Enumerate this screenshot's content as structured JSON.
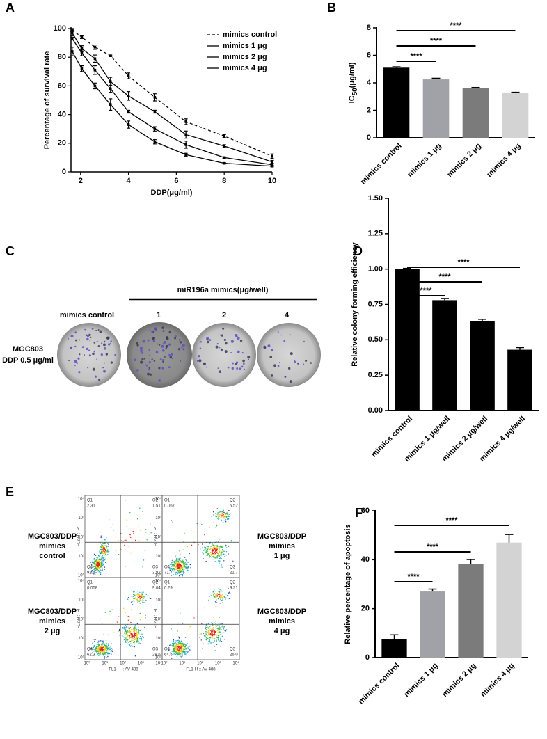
{
  "chart_data": [
    {
      "type": "line",
      "label": "A",
      "xlabel": "DDP(μg/ml)",
      "ylabel": "Percentage of survival rate",
      "x": [
        1.65,
        2.05,
        2.6,
        3.25,
        4,
        5.1,
        6.4,
        8,
        10
      ],
      "xlim": [
        1.6,
        10
      ],
      "xticks": [
        2,
        4,
        6,
        8,
        10
      ],
      "ylim": [
        0,
        100
      ],
      "yticks": [
        0,
        20,
        40,
        60,
        80,
        100
      ],
      "legend": "upper right",
      "series": [
        {
          "name": "mimics control",
          "color": "#000000",
          "dashed": true,
          "values": [
            99,
            94,
            87,
            81,
            67,
            52,
            35,
            25,
            11
          ],
          "errors": [
            1,
            1,
            1.5,
            0.5,
            2,
            2.5,
            2,
            1,
            1.5
          ]
        },
        {
          "name": "mimics 1 μg",
          "color": "#000000",
          "dashed": false,
          "values": [
            97,
            86,
            79,
            63,
            53,
            42,
            26,
            18,
            7
          ],
          "errors": [
            2,
            2,
            2.5,
            3,
            3,
            1,
            2.5,
            1,
            1
          ]
        },
        {
          "name": "mimics 2 μg",
          "color": "#000000",
          "dashed": false,
          "values": [
            93,
            83,
            71,
            58,
            42,
            30,
            19,
            10,
            5
          ],
          "errors": [
            1,
            2,
            3,
            2.5,
            1,
            1.5,
            2.5,
            0.5,
            0.5
          ]
        },
        {
          "name": "mimics 4 μg",
          "color": "#000000",
          "dashed": false,
          "values": [
            84,
            72,
            60,
            47,
            33,
            21,
            12,
            6,
            4
          ],
          "errors": [
            3,
            2,
            2,
            4,
            2.5,
            1.5,
            1,
            0.5,
            0.5
          ]
        }
      ]
    },
    {
      "type": "bar",
      "label": "B",
      "ylabel": {
        "main": "IC",
        "sub": "50",
        "unit": "(μg/ml)"
      },
      "categories": [
        "mimics control",
        "mimics 1 μg",
        "mimics 2 μg",
        "mimics 4 μg"
      ],
      "values": [
        5.1,
        4.25,
        3.62,
        3.25
      ],
      "errors": [
        0.06,
        0.08,
        0.04,
        0.06
      ],
      "colors": [
        "#000000",
        "#a1a1a8",
        "#7b7b7b",
        "#d3d3d3"
      ],
      "ylim": [
        0,
        8
      ],
      "yticks": [
        0,
        2,
        4,
        6,
        8
      ],
      "annotations": [
        "****",
        "****",
        "****"
      ]
    },
    {
      "type": "bar",
      "label": "D",
      "ylabel": "Relative colony forming efficiency",
      "categories": [
        "mimics control",
        "mimics 1 μg/well",
        "mimics 2 μg/well",
        "mimics 4 μg/well"
      ],
      "values": [
        1.0,
        0.78,
        0.63,
        0.43
      ],
      "errors": [
        0.005,
        0.012,
        0.015,
        0.015
      ],
      "colors": [
        "#000000",
        "#000000",
        "#000000",
        "#000000"
      ],
      "ylim": [
        0,
        1.5
      ],
      "yticks": [
        {
          "value": 0,
          "label": "0.00"
        },
        {
          "value": 0.25,
          "label": "0.25"
        },
        {
          "value": 0.5,
          "label": "0.50"
        },
        {
          "value": 0.75,
          "label": "0.75"
        },
        {
          "value": 1,
          "label": "1.00"
        },
        {
          "value": 1.25,
          "label": "1.25"
        },
        {
          "value": 1.5,
          "label": "1.50"
        }
      ],
      "annotations": [
        "****",
        "****",
        "****"
      ]
    },
    {
      "type": "bar",
      "label": "F",
      "ylabel": "Relative percentage of apoptosis",
      "categories": [
        "mimics control",
        "mimics 1 μg",
        "mimics 2 μg",
        "mimics 4 μg"
      ],
      "values": [
        7.5,
        27,
        38.3,
        47
      ],
      "errors": [
        1.8,
        1,
        1.8,
        3.3
      ],
      "colors": [
        "#000000",
        "#a1a1a8",
        "#7b7b7b",
        "#d3d3d3"
      ],
      "ylim": [
        0,
        60
      ],
      "yticks": [
        0,
        20,
        40,
        60
      ],
      "annotations": [
        "****",
        "****",
        "****"
      ]
    }
  ],
  "panel_c": {
    "label": "C",
    "group_label": "miR196a mimics(μg/well)",
    "columns": [
      "mimics control",
      "1",
      "2",
      "4"
    ],
    "row_label": [
      "MGC803",
      "DDP 0.5 μg/ml"
    ]
  },
  "panel_e": {
    "label": "E",
    "x_axis_label": "FL1-H :: AV 488",
    "y_axis_label": "FL2-H :: PI",
    "axis_ticks": [
      "10⁰",
      "10¹",
      "10²",
      "10³",
      "10⁴"
    ],
    "plots": [
      {
        "side_label": [
          "MGC803/DDP",
          "mimics",
          "control"
        ],
        "quadrants": [
          {
            "name": "Q1",
            "value": "2.31"
          },
          {
            "name": "Q2",
            "value": "1.51"
          },
          {
            "name": "Q4",
            "value": "92.4"
          },
          {
            "name": "Q3",
            "value": "3.82"
          }
        ]
      },
      {
        "side_label": [
          "MGC803/DDP",
          "mimics",
          "1 μg"
        ],
        "quadrants": [
          {
            "name": "Q1",
            "value": "0.067"
          },
          {
            "name": "Q2",
            "value": "6.52"
          },
          {
            "name": "Q4",
            "value": "71.7"
          },
          {
            "name": "Q3",
            "value": "21.7"
          }
        ]
      },
      {
        "side_label": [
          "MGC803/DDP",
          "mimics",
          "2 μg"
        ],
        "quadrants": [
          {
            "name": "Q1",
            "value": "0.058"
          },
          {
            "name": "Q2",
            "value": "9.04"
          },
          {
            "name": "Q4",
            "value": "62.3"
          },
          {
            "name": "Q3",
            "value": "28.6"
          }
        ]
      },
      {
        "side_label": [
          "MGC803/DDP",
          "mimics",
          "4 μg"
        ],
        "quadrants": [
          {
            "name": "Q1",
            "value": "0.29"
          },
          {
            "name": "Q2",
            "value": "9.21"
          },
          {
            "name": "Q4",
            "value": "64.5"
          },
          {
            "name": "Q3",
            "value": "26.0"
          }
        ]
      }
    ]
  }
}
